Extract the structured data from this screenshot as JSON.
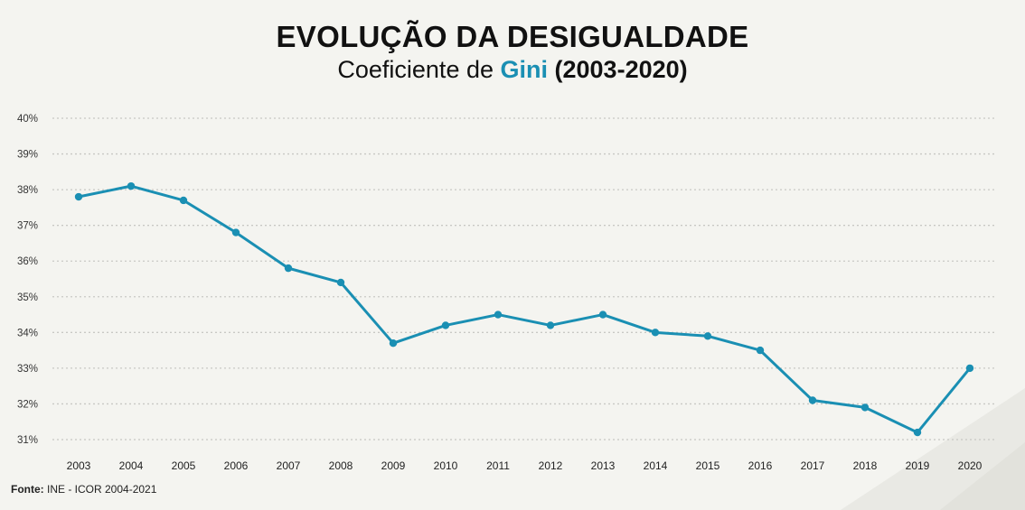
{
  "title": "EVOLUÇÃO DA DESIGUALDADE",
  "subtitle": {
    "prefix": "Coeficiente de ",
    "highlight": "Gini",
    "suffix": "(2003-2020)"
  },
  "source": {
    "label": "Fonte:",
    "text": "INE - ICOR 2004-2021"
  },
  "colors": {
    "line": "#1a8fb3",
    "highlight": "#1a8fb3",
    "grid": "#c8c8c4",
    "background": "#f4f4f0"
  },
  "chart_data": {
    "type": "line",
    "title": "EVOLUÇÃO DA DESIGUALDADE",
    "subtitle": "Coeficiente de Gini (2003-2020)",
    "xlabel": "",
    "ylabel": "",
    "categories": [
      "2003",
      "2004",
      "2005",
      "2006",
      "2007",
      "2008",
      "2009",
      "2010",
      "2011",
      "2012",
      "2013",
      "2014",
      "2015",
      "2016",
      "2017",
      "2018",
      "2019",
      "2020"
    ],
    "series": [
      {
        "values": [
          37.8,
          38.1,
          37.7,
          36.8,
          35.8,
          35.4,
          33.7,
          34.2,
          34.5,
          34.2,
          34.5,
          34.0,
          33.9,
          33.5,
          32.1,
          31.9,
          31.2,
          33.0
        ]
      }
    ],
    "ylim": [
      31,
      40
    ],
    "yticks": [
      "31%",
      "32%",
      "33%",
      "34%",
      "35%",
      "36%",
      "37%",
      "38%",
      "39%",
      "40%"
    ],
    "grid": true,
    "legend": "none"
  }
}
